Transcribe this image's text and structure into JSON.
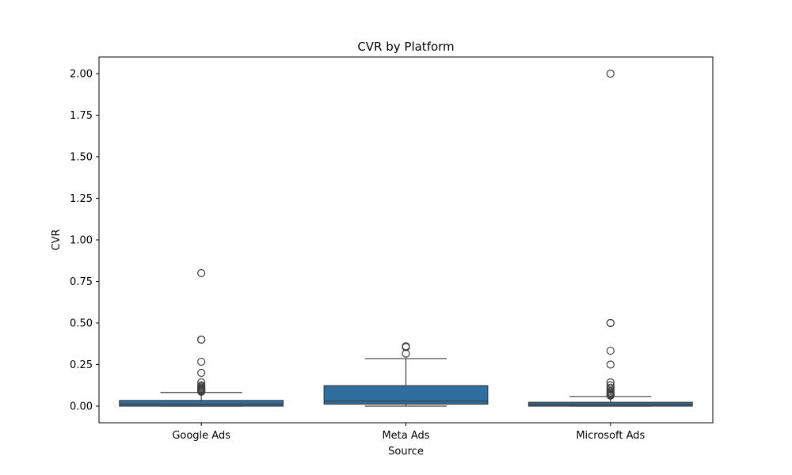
{
  "chart_data": {
    "type": "box",
    "title": "CVR by Platform",
    "xlabel": "Source",
    "ylabel": "CVR",
    "ylim": [
      -0.1,
      2.1
    ],
    "yticks": [
      0.0,
      0.25,
      0.5,
      0.75,
      1.0,
      1.25,
      1.5,
      1.75,
      2.0
    ],
    "ytick_labels": [
      "0.00",
      "0.25",
      "0.50",
      "0.75",
      "1.00",
      "1.25",
      "1.50",
      "1.75",
      "2.00"
    ],
    "grid": false,
    "box_color": "#2f6f9f",
    "categories": [
      "Google Ads",
      "Meta Ads",
      "Microsoft Ads"
    ],
    "boxes": [
      {
        "category": "Google Ads",
        "whisker_low": 0.0,
        "q1": 0.0,
        "median": 0.012,
        "q3": 0.034,
        "whisker_high": 0.082,
        "outliers": [
          0.8,
          0.4,
          0.4,
          0.267,
          0.2,
          0.143,
          0.125,
          0.118,
          0.111,
          0.105,
          0.1,
          0.095,
          0.09,
          0.087
        ]
      },
      {
        "category": "Meta Ads",
        "whisker_low": 0.0,
        "q1": 0.012,
        "median": 0.03,
        "q3": 0.123,
        "whisker_high": 0.286,
        "outliers": [
          0.36,
          0.355,
          0.316
        ]
      },
      {
        "category": "Microsoft Ads",
        "whisker_low": 0.0,
        "q1": 0.0,
        "median": 0.01,
        "q3": 0.023,
        "whisker_high": 0.058,
        "outliers": [
          2.0,
          0.5,
          0.5,
          0.333,
          0.25,
          0.143,
          0.125,
          0.111,
          0.1,
          0.091,
          0.083,
          0.077,
          0.071,
          0.067,
          0.063
        ]
      }
    ]
  }
}
